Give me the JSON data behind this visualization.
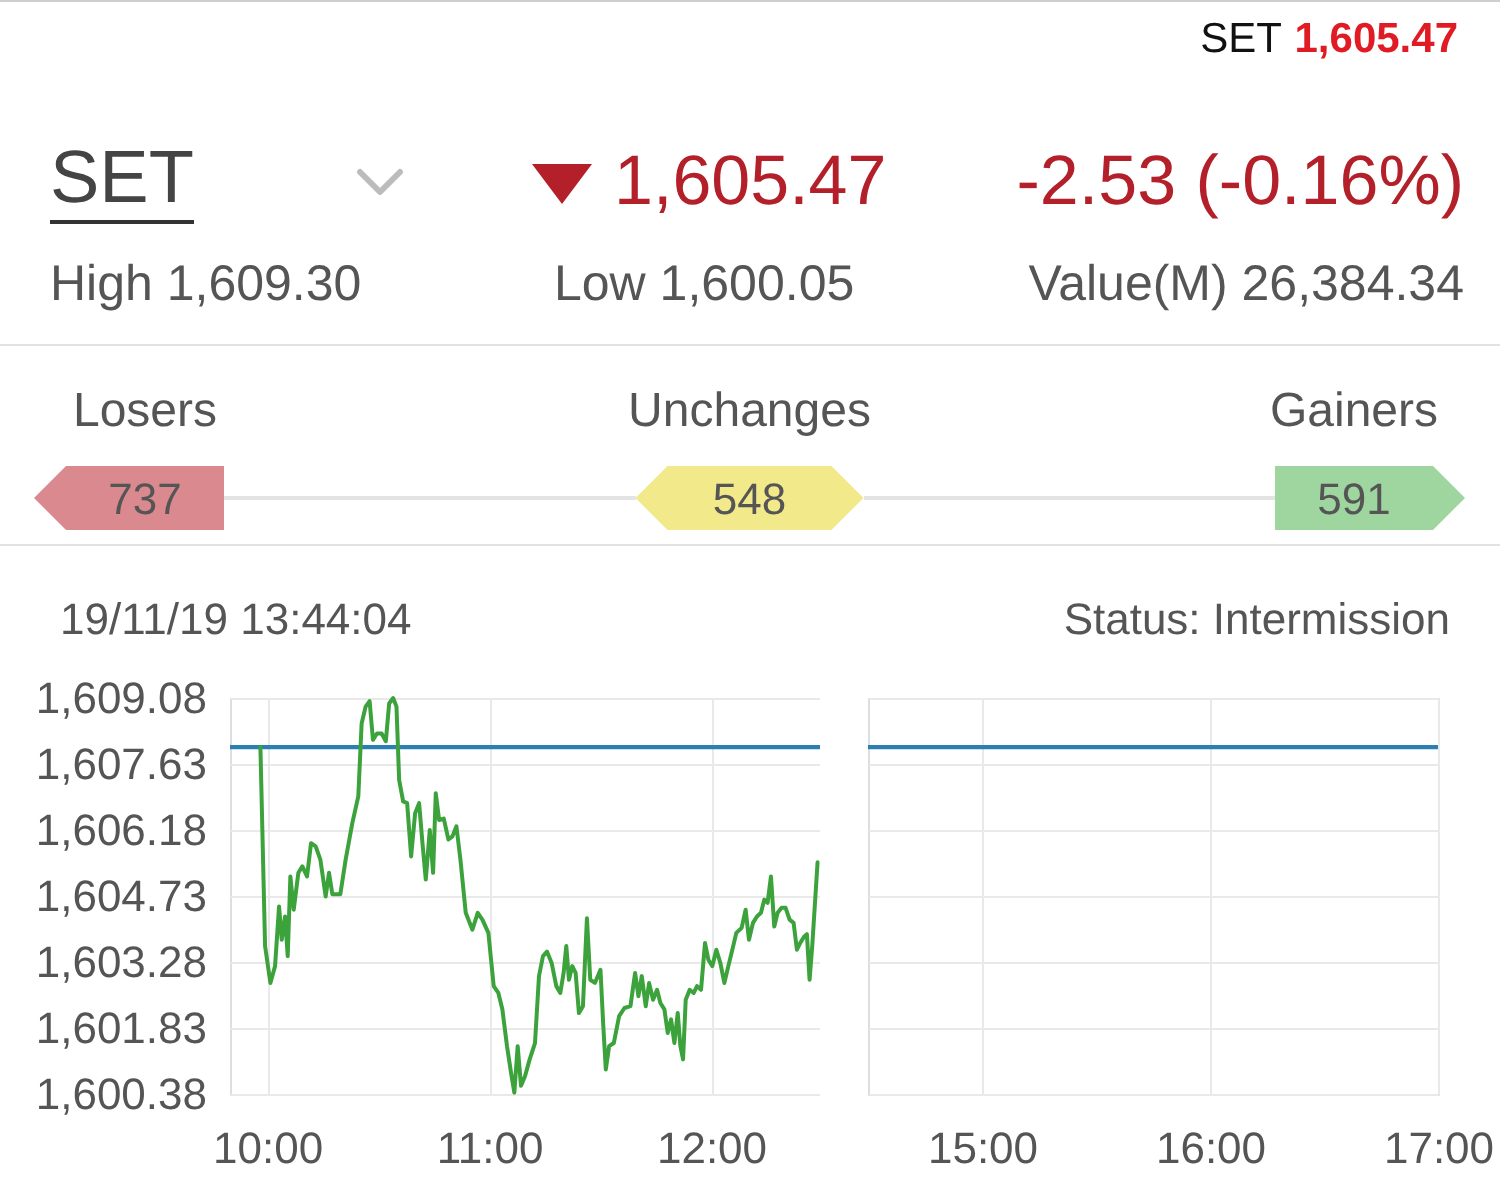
{
  "chart_data": [
    {
      "type": "other",
      "title": "SET",
      "annotations": [
        "SET",
        "1,605.47",
        "1,605.47",
        "-2.53 (-0.16%)",
        "High 1,609.30",
        "Low 1,600.05",
        "Value(M) 26,384.34"
      ]
    },
    {
      "type": "other",
      "categories": [
        "Losers",
        "Unchanges",
        "Gainers"
      ],
      "values": [
        737,
        548,
        591
      ],
      "colors": [
        "#da898e",
        "#f2e98b",
        "#9fd6a0"
      ],
      "data_labels": true
    },
    {
      "type": "line",
      "title": "19/11/19 13:44:04",
      "x": [
        9.97,
        9.991,
        10.015,
        10.036,
        10.054,
        10.066,
        10.081,
        10.093,
        10.105,
        10.12,
        10.141,
        10.159,
        10.18,
        10.198,
        10.219,
        10.24,
        10.264,
        10.279,
        10.294,
        10.33,
        10.354,
        10.384,
        10.411,
        10.426,
        10.444,
        10.462,
        10.477,
        10.495,
        10.516,
        10.535,
        10.55,
        10.568,
        10.583,
        10.595,
        10.613,
        10.631,
        10.649,
        10.667,
        10.685,
        10.7,
        10.715,
        10.733,
        10.748,
        10.76,
        10.775,
        10.796,
        10.817,
        10.835,
        10.853,
        10.871,
        10.895,
        10.925,
        10.949,
        10.97,
        10.997,
        11.021,
        11.042,
        11.06,
        11.081,
        11.099,
        11.114,
        11.129,
        11.144,
        11.162,
        11.183,
        11.207,
        11.225,
        11.243,
        11.261,
        11.282,
        11.303,
        11.321,
        11.336,
        11.348,
        11.36,
        11.375,
        11.39,
        11.405,
        11.423,
        11.441,
        11.456,
        11.477,
        11.502,
        11.514,
        11.526,
        11.541,
        11.562,
        11.586,
        11.61,
        11.637,
        11.658,
        11.673,
        11.688,
        11.706,
        11.721,
        11.739,
        11.757,
        11.772,
        11.79,
        11.805,
        11.82,
        11.835,
        11.85,
        11.862,
        11.874,
        11.886,
        11.904,
        11.922,
        11.937,
        11.955,
        11.973,
        11.988,
        12.006,
        12.024,
        12.042,
        12.06,
        12.078,
        12.096,
        12.114,
        12.138,
        12.156,
        12.171,
        12.189,
        12.207,
        12.225,
        12.24,
        12.255,
        12.27,
        12.285,
        12.3,
        12.318,
        12.336,
        12.354,
        12.372,
        12.387,
        12.402,
        12.42,
        12.432,
        12.444,
        12.456,
        12.48
      ],
      "series": [
        {
          "color": "#3ca23c",
          "values": [
            1608.0,
            1603.63,
            1602.82,
            1603.19,
            1604.5,
            1603.77,
            1604.28,
            1603.41,
            1605.16,
            1604.43,
            1605.24,
            1605.38,
            1605.16,
            1605.89,
            1605.82,
            1605.53,
            1604.72,
            1605.24,
            1604.77,
            1604.77,
            1605.53,
            1606.33,
            1606.92,
            1608.52,
            1608.89,
            1609.01,
            1608.16,
            1608.3,
            1608.3,
            1608.13,
            1608.96,
            1609.08,
            1608.89,
            1607.28,
            1606.81,
            1606.77,
            1605.6,
            1606.55,
            1606.77,
            1605.89,
            1605.09,
            1606.18,
            1605.24,
            1606.99,
            1606.4,
            1606.43,
            1605.97,
            1606.04,
            1606.26,
            1605.53,
            1604.36,
            1603.99,
            1604.36,
            1604.21,
            1603.92,
            1602.75,
            1602.6,
            1602.24,
            1601.43,
            1600.85,
            1600.41,
            1601.43,
            1600.56,
            1600.77,
            1601.14,
            1601.5,
            1602.97,
            1603.41,
            1603.51,
            1603.26,
            1602.75,
            1602.6,
            1603.04,
            1603.63,
            1602.89,
            1603.19,
            1603.04,
            1602.16,
            1602.31,
            1604.24,
            1602.89,
            1602.82,
            1603.11,
            1601.94,
            1600.92,
            1601.43,
            1601.5,
            1602.09,
            1602.27,
            1602.31,
            1603.04,
            1602.53,
            1602.97,
            1602.31,
            1602.82,
            1602.45,
            1602.67,
            1602.38,
            1602.24,
            1601.72,
            1602.02,
            1601.5,
            1602.16,
            1601.43,
            1601.14,
            1602.45,
            1602.67,
            1602.6,
            1602.75,
            1602.67,
            1603.7,
            1603.33,
            1603.19,
            1603.55,
            1603.26,
            1602.82,
            1603.19,
            1603.55,
            1603.92,
            1604.03,
            1604.43,
            1603.77,
            1604.14,
            1604.28,
            1604.36,
            1604.65,
            1604.58,
            1605.16,
            1604.06,
            1604.36,
            1604.47,
            1604.47,
            1604.21,
            1604.14,
            1603.55,
            1603.7,
            1603.84,
            1603.89,
            1602.89,
            1603.63,
            1605.47
          ]
        }
      ],
      "xlim": [
        9.833,
        12.5
      ],
      "xticks": [
        {
          "value": 10,
          "label": "10:00"
        },
        {
          "value": 11,
          "label": "11:00"
        },
        {
          "value": 12,
          "label": "12:00"
        }
      ],
      "ylim": [
        1600.38,
        1609.08
      ],
      "yticks": [
        {
          "value": 1600.38,
          "label": "1,600.38"
        },
        {
          "value": 1601.83,
          "label": "1,601.83"
        },
        {
          "value": 1603.28,
          "label": "1,603.28"
        },
        {
          "value": 1604.73,
          "label": "1,604.73"
        },
        {
          "value": 1606.18,
          "label": "1,606.18"
        },
        {
          "value": 1607.63,
          "label": "1,607.63"
        },
        {
          "value": 1609.08,
          "label": "1,609.08"
        }
      ],
      "grid": true,
      "ref_lines": [
        {
          "axis": "y",
          "value": 1608.0,
          "color": "#2b7fb2"
        }
      ]
    },
    {
      "type": "line",
      "annotations": [
        "Status: Intermission"
      ],
      "xlim": [
        14.5,
        17
      ],
      "xticks": [
        {
          "value": 15,
          "label": "15:00"
        },
        {
          "value": 16,
          "label": "16:00"
        },
        {
          "value": 17,
          "label": "17:00"
        }
      ],
      "ylim": [
        1600.38,
        1609.08
      ],
      "yticks": [
        {
          "value": 1600.38,
          "label": null
        },
        {
          "value": 1601.83,
          "label": null
        },
        {
          "value": 1603.28,
          "label": null
        },
        {
          "value": 1604.73,
          "label": null
        },
        {
          "value": 1606.18,
          "label": null
        },
        {
          "value": 1607.63,
          "label": null
        },
        {
          "value": 1609.08,
          "label": null
        }
      ],
      "tick_labels": "x",
      "grid": true,
      "ref_lines": [
        {
          "axis": "y",
          "value": 1608.0,
          "color": "#2b7fb2"
        }
      ]
    }
  ]
}
